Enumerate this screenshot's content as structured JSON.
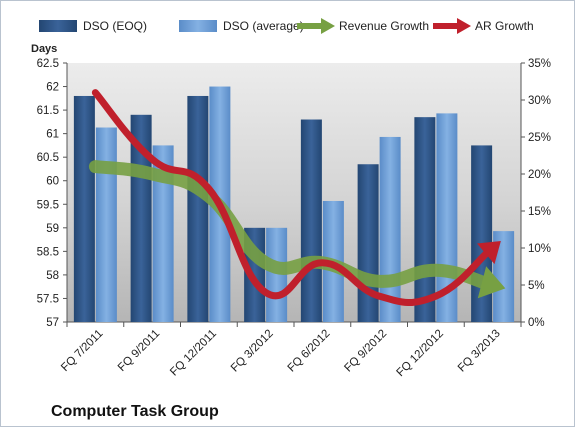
{
  "chart_data": {
    "type": "bar",
    "title": "Computer Task Group",
    "y_left_label": "Days",
    "y_left_range": [
      57,
      62.5
    ],
    "y_left_ticks": [
      "57",
      "57.5",
      "58",
      "58.5",
      "59",
      "59.5",
      "60",
      "60.5",
      "61",
      "61.5",
      "62",
      "62.5"
    ],
    "y_right_range": [
      0,
      35
    ],
    "y_right_ticks": [
      "0%",
      "5%",
      "10%",
      "15%",
      "20%",
      "25%",
      "30%",
      "35%"
    ],
    "categories": [
      "FQ 7/2011",
      "FQ 9/2011",
      "FQ 12/2011",
      "FQ 3/2012",
      "FQ 6/2012",
      "FQ 9/2012",
      "FQ 12/2012",
      "FQ 3/2013"
    ],
    "series": [
      {
        "name": "DSO (EOQ)",
        "type": "bar",
        "axis": "left",
        "color": "#2e5688",
        "values": [
          61.8,
          61.4,
          61.8,
          59.0,
          61.3,
          60.35,
          61.35,
          60.75
        ]
      },
      {
        "name": "DSO (average)",
        "type": "bar",
        "axis": "left",
        "color": "#6e9fd8",
        "values": [
          61.13,
          60.75,
          62.0,
          59.0,
          59.57,
          60.93,
          61.43,
          58.93
        ]
      },
      {
        "name": "Revenue Growth",
        "type": "line",
        "axis": "right",
        "color": "#77a043",
        "values": [
          21.0,
          20.0,
          17.0,
          8.0,
          8.0,
          5.5,
          7.0,
          5.0
        ]
      },
      {
        "name": "AR Growth",
        "type": "line",
        "axis": "right",
        "color": "#c0202c",
        "values": [
          31.0,
          22.0,
          18.0,
          4.0,
          8.0,
          3.5,
          3.5,
          10.0
        ]
      }
    ],
    "grid": false,
    "legend_position": "top"
  }
}
